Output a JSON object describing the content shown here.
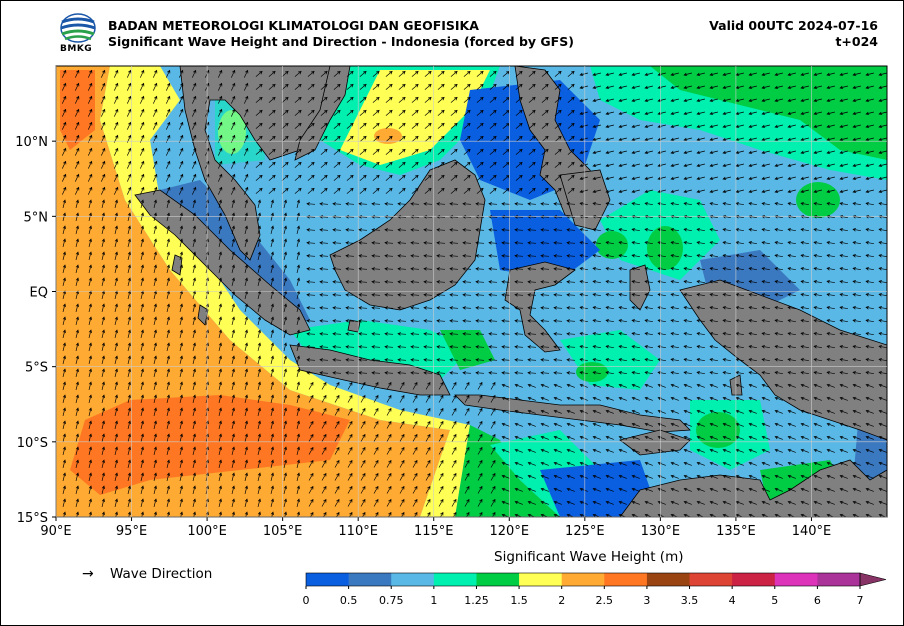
{
  "header": {
    "agency": "BADAN METEOROLOGI KLIMATOLOGI DAN GEOFISIKA",
    "product": "Significant Wave Height and Direction - Indonesia (forced by GFS)",
    "valid": "Valid 00UTC 2024-07-16",
    "lead_time": "t+024",
    "logo_text": "BMKG"
  },
  "map": {
    "lon_range": [
      90,
      145
    ],
    "lat_range": [
      -15,
      15
    ],
    "x_ticks": [
      "90°E",
      "95°E",
      "100°E",
      "105°E",
      "110°E",
      "115°E",
      "120°E",
      "125°E",
      "130°E",
      "135°E",
      "140°E"
    ],
    "y_ticks": [
      "10°N",
      "5°N",
      "EQ",
      "5°S",
      "10°S",
      "15°S"
    ],
    "land_color": "#808080"
  },
  "legend": {
    "arrow_symbol": "→",
    "wave_direction_label": "Wave Direction"
  },
  "colorbar": {
    "title": "Significant Wave Height (m)",
    "bounds": [
      "0",
      "0.5",
      "0.75",
      "1",
      "1.25",
      "1.5",
      "2",
      "2.5",
      "3",
      "3.5",
      "4",
      "5",
      "6",
      "7"
    ],
    "colors": [
      "#0a5ee0",
      "#3a78c0",
      "#5ab8e6",
      "#00f0b0",
      "#00cc44",
      "#ffff55",
      "#ffaa33",
      "#ff7722",
      "#994411",
      "#dd4433",
      "#cc2244",
      "#dd33bb",
      "#aa3399",
      "#883366"
    ]
  }
}
